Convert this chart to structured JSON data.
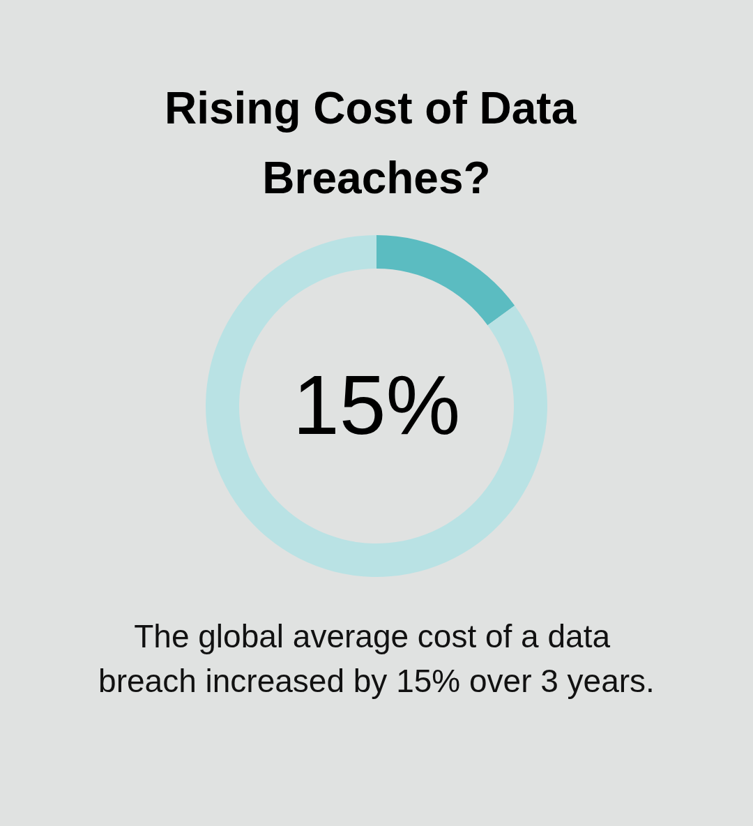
{
  "chart_data": {
    "type": "donut",
    "title": "Rising Cost of Data Breaches?",
    "categories": [
      null,
      null
    ],
    "values": [
      15,
      85
    ],
    "colors": [
      "#5bbcc1",
      "#b9e2e4"
    ],
    "annotations": [
      "15%",
      "The global average cost of a data breach increased by 15% over 3 years."
    ]
  }
}
